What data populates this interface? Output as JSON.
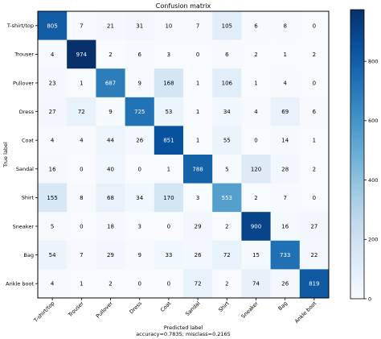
{
  "chart_data": {
    "type": "heatmap",
    "title": "Confusion matrix",
    "ylabel": "True label",
    "xlabel": "Predicted label",
    "xlabel_line2": "accuracy=0.7835; misclass=0.2165",
    "labels": [
      "T-shirt/top",
      "Trouser",
      "Pullover",
      "Dress",
      "Coat",
      "Sandal",
      "Shirt",
      "Sneaker",
      "Bag",
      "Ankle boot"
    ],
    "matrix": [
      [
        805,
        7,
        21,
        31,
        10,
        7,
        105,
        6,
        8,
        0
      ],
      [
        4,
        974,
        2,
        6,
        3,
        0,
        6,
        2,
        1,
        2
      ],
      [
        23,
        1,
        687,
        9,
        168,
        1,
        106,
        1,
        4,
        0
      ],
      [
        27,
        72,
        9,
        725,
        53,
        1,
        34,
        4,
        69,
        6
      ],
      [
        4,
        4,
        44,
        26,
        851,
        1,
        55,
        0,
        14,
        1
      ],
      [
        16,
        0,
        40,
        0,
        1,
        788,
        5,
        120,
        28,
        2
      ],
      [
        155,
        8,
        68,
        34,
        170,
        3,
        553,
        2,
        7,
        0
      ],
      [
        5,
        0,
        18,
        3,
        0,
        29,
        2,
        900,
        16,
        27
      ],
      [
        54,
        7,
        29,
        9,
        33,
        26,
        72,
        15,
        733,
        22
      ],
      [
        4,
        1,
        2,
        0,
        0,
        72,
        2,
        74,
        26,
        819
      ]
    ],
    "vmin": 0,
    "vmax": 974,
    "colormap": "Blues",
    "colorbar_ticks": [
      0,
      200,
      400,
      600,
      800
    ],
    "grid": false
  }
}
